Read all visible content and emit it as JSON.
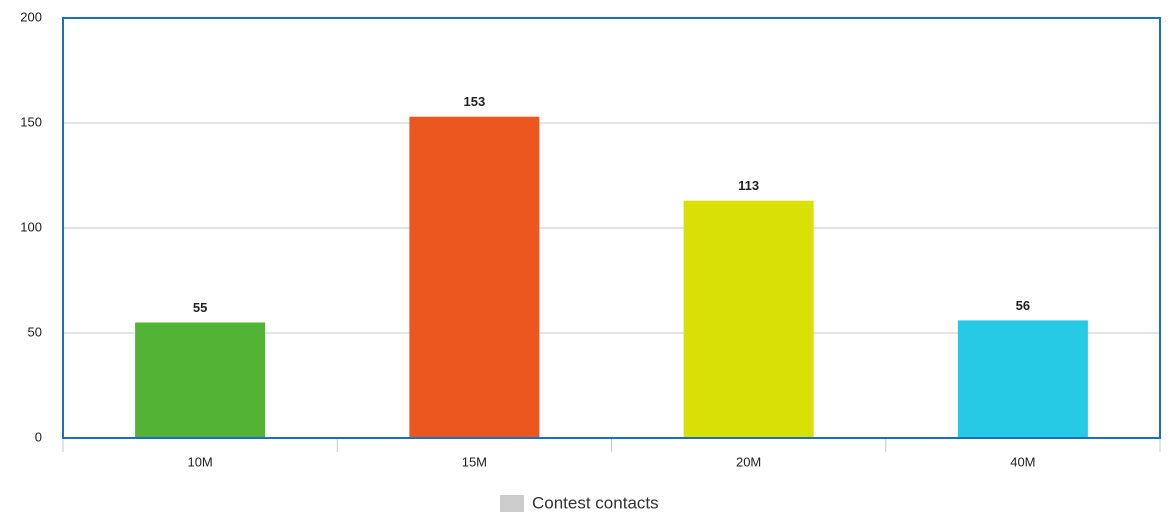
{
  "chart_data": {
    "type": "bar",
    "categories": [
      "10M",
      "15M",
      "20M",
      "40M"
    ],
    "series": [
      {
        "name": "Contest contacts",
        "color": "#cccccc",
        "values": [
          55,
          153,
          113,
          56
        ],
        "colors": [
          "#52b334",
          "#ec571f",
          "#d9e005",
          "#27cae5"
        ]
      }
    ],
    "ylim": [
      0,
      200
    ],
    "yticks": [
      0,
      50,
      100,
      150,
      200
    ],
    "grid": true,
    "legend": "bottom"
  }
}
